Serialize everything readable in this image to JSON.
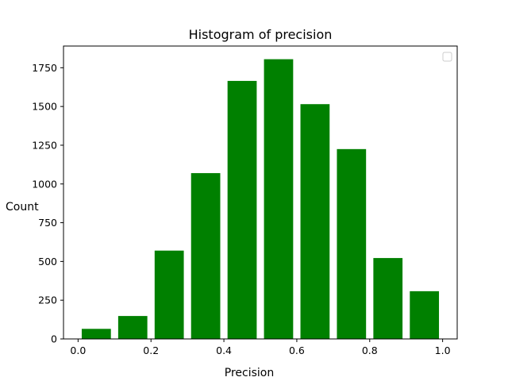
{
  "chart_data": {
    "type": "bar",
    "title": "Histogram of precision",
    "xlabel": "Precision",
    "ylabel": "Count",
    "x": [
      0.05,
      0.15,
      0.25,
      0.35,
      0.45,
      0.55,
      0.65,
      0.75,
      0.85,
      0.95
    ],
    "bar_width": 0.08,
    "values": [
      65,
      148,
      570,
      1070,
      1665,
      1805,
      1515,
      1225,
      522,
      308
    ],
    "xlim": [
      -0.04,
      1.04
    ],
    "ylim": [
      0,
      1890
    ],
    "xticks": [
      0.0,
      0.2,
      0.4,
      0.6,
      0.8,
      1.0
    ],
    "xtick_labels": [
      "0.0",
      "0.2",
      "0.4",
      "0.6",
      "0.8",
      "1.0"
    ],
    "yticks": [
      0,
      250,
      500,
      750,
      1000,
      1250,
      1500,
      1750
    ],
    "ytick_labels": [
      "0",
      "250",
      "500",
      "750",
      "1000",
      "1250",
      "1500",
      "1750"
    ],
    "bar_color": "#008000",
    "grid": false,
    "legend": {
      "placement": "top-right",
      "entries": []
    }
  }
}
